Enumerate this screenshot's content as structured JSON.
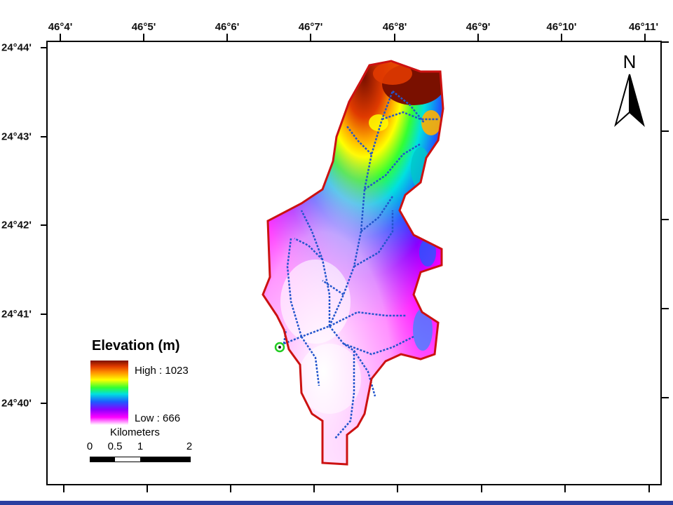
{
  "axes": {
    "top_longitude_labels": [
      "46°4'",
      "46°5'",
      "46°6'",
      "46°7'",
      "46°8'",
      "46°9'",
      "46°10'",
      "46°11'"
    ],
    "left_latitude_labels": [
      "24°44'",
      "24°43'",
      "24°42'",
      "24°41'",
      "24°40'"
    ]
  },
  "legend": {
    "title": "Elevation (m)",
    "high_label": "High : 1023",
    "low_label": "Low : 666",
    "ramp_colors": [
      "#7a1000",
      "#ff8c00",
      "#ffff00",
      "#33ff33",
      "#00e0e0",
      "#1c5cff",
      "#8a00ff",
      "#ff00ff",
      "#ffffff"
    ]
  },
  "scale_bar": {
    "unit_label": "Kilometers",
    "ticks": [
      "0",
      "0.5",
      "1",
      "2"
    ]
  },
  "north_arrow": {
    "label": "N",
    "icon": "north-arrow-icon"
  },
  "colors": {
    "watershed_boundary": "#cc1111",
    "streams": "#2255cc",
    "outlet_point": "#22cc22",
    "bottom_strip": "#2a3fa0"
  }
}
